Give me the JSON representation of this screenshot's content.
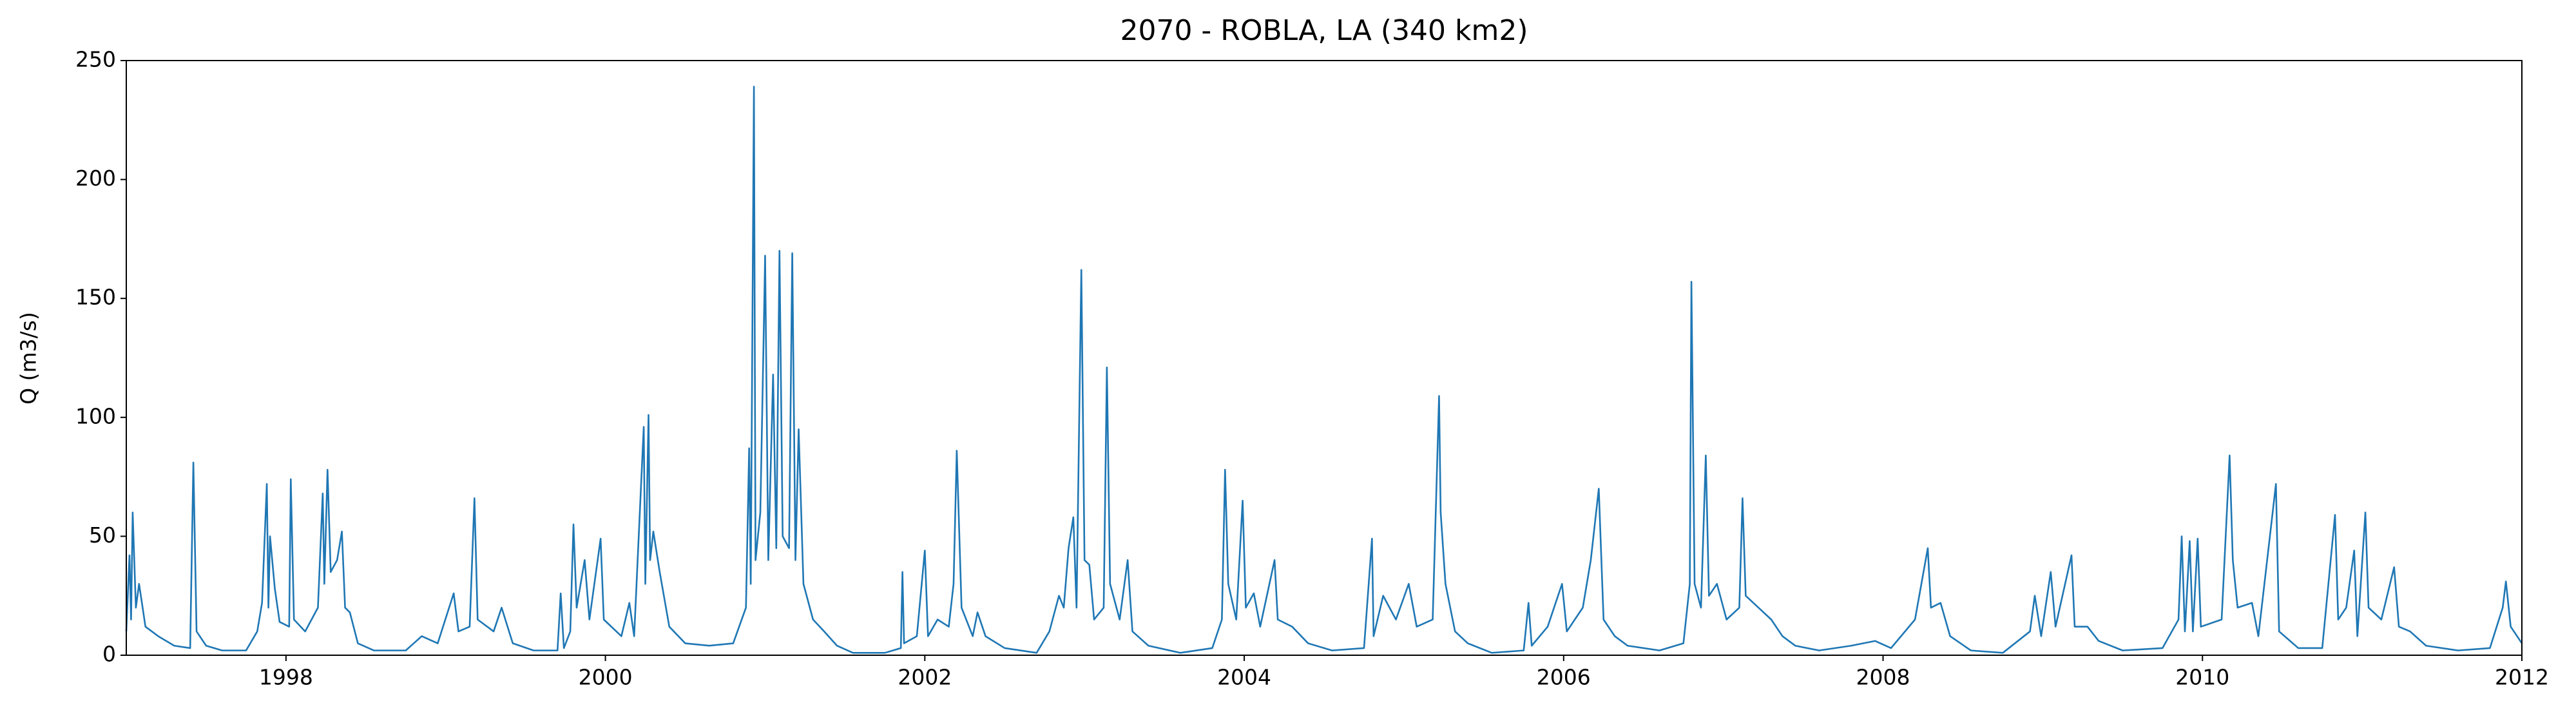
{
  "chart_data": {
    "type": "line",
    "title": "2070 - ROBLA, LA (340 km2)",
    "ylabel": "Q (m3/s)",
    "color": "#1f77b4",
    "x": [
      1997.0,
      1997.02,
      1997.03,
      1997.04,
      1997.06,
      1997.08,
      1997.12,
      1997.2,
      1997.3,
      1997.4,
      1997.42,
      1997.44,
      1997.5,
      1997.6,
      1997.75,
      1997.82,
      1997.85,
      1997.88,
      1997.89,
      1997.9,
      1997.93,
      1997.96,
      1998.02,
      1998.03,
      1998.05,
      1998.12,
      1998.2,
      1998.23,
      1998.24,
      1998.26,
      1998.28,
      1998.32,
      1998.35,
      1998.37,
      1998.4,
      1998.45,
      1998.55,
      1998.75,
      1998.85,
      1998.95,
      1999.05,
      1999.08,
      1999.15,
      1999.18,
      1999.2,
      1999.3,
      1999.35,
      1999.42,
      1999.55,
      1999.7,
      1999.72,
      1999.74,
      1999.78,
      1999.8,
      1999.82,
      1999.87,
      1999.9,
      1999.97,
      1999.99,
      2000.1,
      2000.15,
      2000.18,
      2000.24,
      2000.25,
      2000.27,
      2000.28,
      2000.3,
      2000.34,
      2000.4,
      2000.5,
      2000.65,
      2000.8,
      2000.88,
      2000.9,
      2000.91,
      2000.93,
      2000.94,
      2000.97,
      2000.99,
      2001.0,
      2001.02,
      2001.05,
      2001.07,
      2001.09,
      2001.11,
      2001.15,
      2001.17,
      2001.19,
      2001.21,
      2001.24,
      2001.3,
      2001.37,
      2001.45,
      2001.55,
      2001.75,
      2001.85,
      2001.86,
      2001.87,
      2001.95,
      2002.0,
      2002.02,
      2002.08,
      2002.15,
      2002.18,
      2002.2,
      2002.23,
      2002.3,
      2002.33,
      2002.38,
      2002.5,
      2002.7,
      2002.78,
      2002.84,
      2002.87,
      2002.9,
      2002.93,
      2002.95,
      2002.98,
      2003.0,
      2003.03,
      2003.06,
      2003.12,
      2003.14,
      2003.16,
      2003.22,
      2003.27,
      2003.3,
      2003.4,
      2003.6,
      2003.8,
      2003.86,
      2003.88,
      2003.9,
      2003.95,
      2003.99,
      2004.01,
      2004.06,
      2004.1,
      2004.19,
      2004.21,
      2004.3,
      2004.4,
      2004.55,
      2004.75,
      2004.8,
      2004.81,
      2004.87,
      2004.95,
      2005.03,
      2005.08,
      2005.18,
      2005.22,
      2005.23,
      2005.26,
      2005.32,
      2005.4,
      2005.55,
      2005.75,
      2005.78,
      2005.8,
      2005.9,
      2005.99,
      2006.02,
      2006.12,
      2006.17,
      2006.22,
      2006.25,
      2006.32,
      2006.4,
      2006.6,
      2006.75,
      2006.79,
      2006.8,
      2006.82,
      2006.86,
      2006.89,
      2006.91,
      2006.96,
      2007.02,
      2007.1,
      2007.12,
      2007.14,
      2007.22,
      2007.3,
      2007.37,
      2007.45,
      2007.6,
      2007.8,
      2007.95,
      2008.05,
      2008.2,
      2008.28,
      2008.3,
      2008.36,
      2008.42,
      2008.55,
      2008.75,
      2008.92,
      2008.95,
      2008.99,
      2009.05,
      2009.08,
      2009.18,
      2009.2,
      2009.28,
      2009.35,
      2009.5,
      2009.75,
      2009.85,
      2009.87,
      2009.89,
      2009.92,
      2009.94,
      2009.97,
      2009.99,
      2010.12,
      2010.17,
      2010.19,
      2010.22,
      2010.31,
      2010.35,
      2010.46,
      2010.48,
      2010.6,
      2010.75,
      2010.83,
      2010.85,
      2010.9,
      2010.95,
      2010.97,
      2011.02,
      2011.04,
      2011.12,
      2011.2,
      2011.23,
      2011.3,
      2011.4,
      2011.6,
      2011.8,
      2011.88,
      2011.9,
      2011.93,
      2011.97,
      2012.0
    ],
    "values": [
      10,
      42,
      15,
      60,
      20,
      30,
      12,
      8,
      4,
      3,
      81,
      10,
      4,
      2,
      2,
      10,
      22,
      72,
      20,
      50,
      28,
      14,
      12,
      74,
      15,
      10,
      20,
      68,
      30,
      78,
      35,
      40,
      52,
      20,
      18,
      5,
      2,
      2,
      8,
      5,
      26,
      10,
      12,
      66,
      15,
      10,
      20,
      5,
      2,
      2,
      26,
      3,
      10,
      55,
      20,
      40,
      15,
      49,
      15,
      8,
      22,
      8,
      96,
      30,
      101,
      40,
      52,
      35,
      12,
      5,
      4,
      5,
      20,
      87,
      30,
      239,
      40,
      60,
      131,
      168,
      40,
      118,
      45,
      170,
      50,
      45,
      169,
      40,
      95,
      30,
      15,
      10,
      4,
      1,
      1,
      3,
      35,
      5,
      8,
      44,
      8,
      15,
      12,
      30,
      86,
      20,
      8,
      18,
      8,
      3,
      1,
      10,
      25,
      20,
      45,
      58,
      20,
      162,
      40,
      38,
      15,
      20,
      121,
      30,
      15,
      40,
      10,
      4,
      1,
      3,
      15,
      78,
      30,
      15,
      65,
      20,
      26,
      12,
      40,
      15,
      12,
      5,
      2,
      3,
      49,
      8,
      25,
      15,
      30,
      12,
      15,
      109,
      60,
      30,
      10,
      5,
      1,
      2,
      22,
      4,
      12,
      30,
      10,
      20,
      40,
      70,
      15,
      8,
      4,
      2,
      5,
      30,
      157,
      30,
      20,
      84,
      25,
      30,
      15,
      20,
      66,
      25,
      20,
      15,
      8,
      4,
      2,
      4,
      6,
      3,
      15,
      45,
      20,
      22,
      8,
      2,
      1,
      10,
      25,
      8,
      35,
      12,
      42,
      12,
      12,
      6,
      2,
      3,
      15,
      50,
      10,
      48,
      10,
      49,
      12,
      15,
      84,
      40,
      20,
      22,
      8,
      72,
      10,
      3,
      3,
      59,
      15,
      20,
      44,
      8,
      60,
      20,
      15,
      37,
      12,
      10,
      4,
      2,
      3,
      20,
      31,
      12,
      8,
      5
    ],
    "xlim": [
      1997,
      2012
    ],
    "xticks": [
      1998,
      2000,
      2002,
      2004,
      2006,
      2008,
      2010,
      2012
    ],
    "ylim": [
      0,
      250
    ],
    "yticks": [
      0,
      50,
      100,
      150,
      200,
      250
    ]
  }
}
